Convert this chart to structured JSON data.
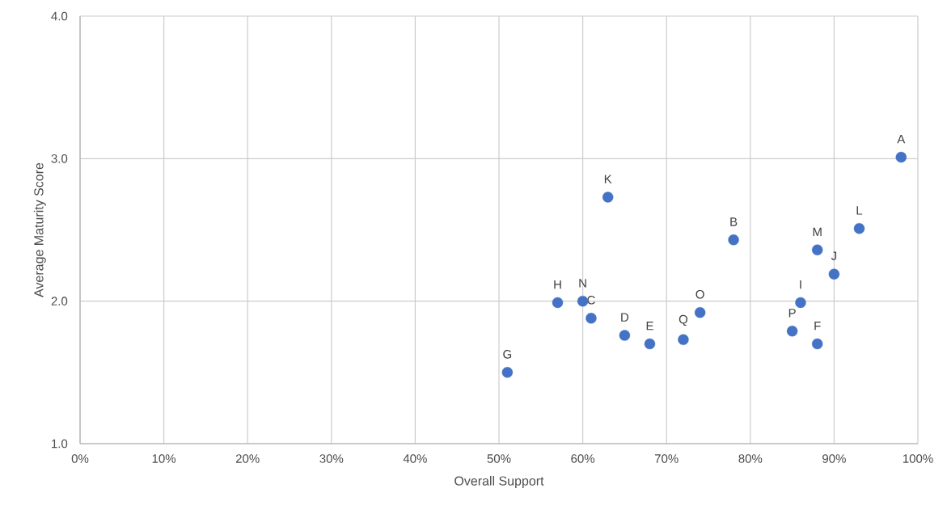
{
  "chart_data": {
    "type": "scatter",
    "xlabel": "Overall Support",
    "ylabel": "Average Maturity Score",
    "x": [
      98,
      78,
      61,
      65,
      68,
      88,
      51,
      57,
      86,
      90,
      63,
      93,
      88,
      60,
      74,
      85,
      72
    ],
    "series": [
      {
        "color": "#4472c4",
        "values": [
          3.01,
          2.43,
          1.88,
          1.76,
          1.7,
          1.7,
          1.5,
          1.99,
          1.99,
          2.19,
          2.73,
          2.51,
          2.36,
          2.0,
          1.92,
          1.79,
          1.73
        ]
      }
    ],
    "annotations": [
      {
        "text": "A",
        "x": 98,
        "y": 3.01
      },
      {
        "text": "B",
        "x": 78,
        "y": 2.43
      },
      {
        "text": "C",
        "x": 61,
        "y": 1.88
      },
      {
        "text": "D",
        "x": 65,
        "y": 1.76
      },
      {
        "text": "E",
        "x": 68,
        "y": 1.7
      },
      {
        "text": "F",
        "x": 88,
        "y": 1.7
      },
      {
        "text": "G",
        "x": 51,
        "y": 1.5
      },
      {
        "text": "H",
        "x": 57,
        "y": 1.99
      },
      {
        "text": "I",
        "x": 86,
        "y": 1.99
      },
      {
        "text": "J",
        "x": 90,
        "y": 2.19
      },
      {
        "text": "K",
        "x": 63,
        "y": 2.73
      },
      {
        "text": "L",
        "x": 93,
        "y": 2.51
      },
      {
        "text": "M",
        "x": 88,
        "y": 2.36
      },
      {
        "text": "N",
        "x": 60,
        "y": 2.0
      },
      {
        "text": "O",
        "x": 74,
        "y": 1.92
      },
      {
        "text": "P",
        "x": 85,
        "y": 1.79
      },
      {
        "text": "Q",
        "x": 72,
        "y": 1.73
      }
    ],
    "xlim": [
      0,
      100
    ],
    "xticks": [
      {
        "value": 0,
        "label": "0%"
      },
      {
        "value": 10,
        "label": "10%"
      },
      {
        "value": 20,
        "label": "20%"
      },
      {
        "value": 30,
        "label": "30%"
      },
      {
        "value": 40,
        "label": "40%"
      },
      {
        "value": 50,
        "label": "50%"
      },
      {
        "value": 60,
        "label": "60%"
      },
      {
        "value": 70,
        "label": "70%"
      },
      {
        "value": 80,
        "label": "80%"
      },
      {
        "value": 90,
        "label": "90%"
      },
      {
        "value": 100,
        "label": "100%"
      }
    ],
    "ylim": [
      1,
      4
    ],
    "yticks": [
      {
        "value": 1,
        "label": "1.0"
      },
      {
        "value": 2,
        "label": "2.0"
      },
      {
        "value": 3,
        "label": "3.0"
      },
      {
        "value": 4,
        "label": "4.0"
      }
    ],
    "grid": true,
    "marker": "circle"
  }
}
